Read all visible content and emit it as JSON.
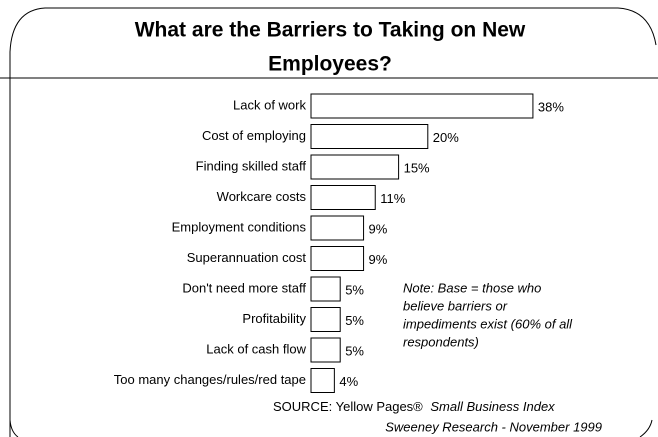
{
  "chart_data": {
    "type": "bar",
    "orientation": "horizontal",
    "title": [
      "What are the Barriers to Taking on New",
      "Employees?"
    ],
    "categories": [
      "Lack of work",
      "Cost of employing",
      "Finding skilled staff",
      "Workcare costs",
      "Employment conditions",
      "Superannuation cost",
      "Don't need more staff",
      "Profitability",
      "Lack of cash flow",
      "Too many changes/rules/red tape"
    ],
    "values": [
      38,
      20,
      15,
      11,
      9,
      9,
      5,
      5,
      5,
      4
    ],
    "value_labels": [
      "38%",
      "20%",
      "15%",
      "11%",
      "9%",
      "9%",
      "5%",
      "5%",
      "5%",
      "4%"
    ],
    "color": "#ffffff",
    "note": [
      "Note: Base = those who",
      "believe barriers or",
      "impediments exist (60% of all",
      "respondents)"
    ],
    "source": {
      "prefix": "SOURCE: Yellow Pages®",
      "publication": "Small Business Index",
      "credit": "Sweeney Research - November 1999"
    }
  }
}
